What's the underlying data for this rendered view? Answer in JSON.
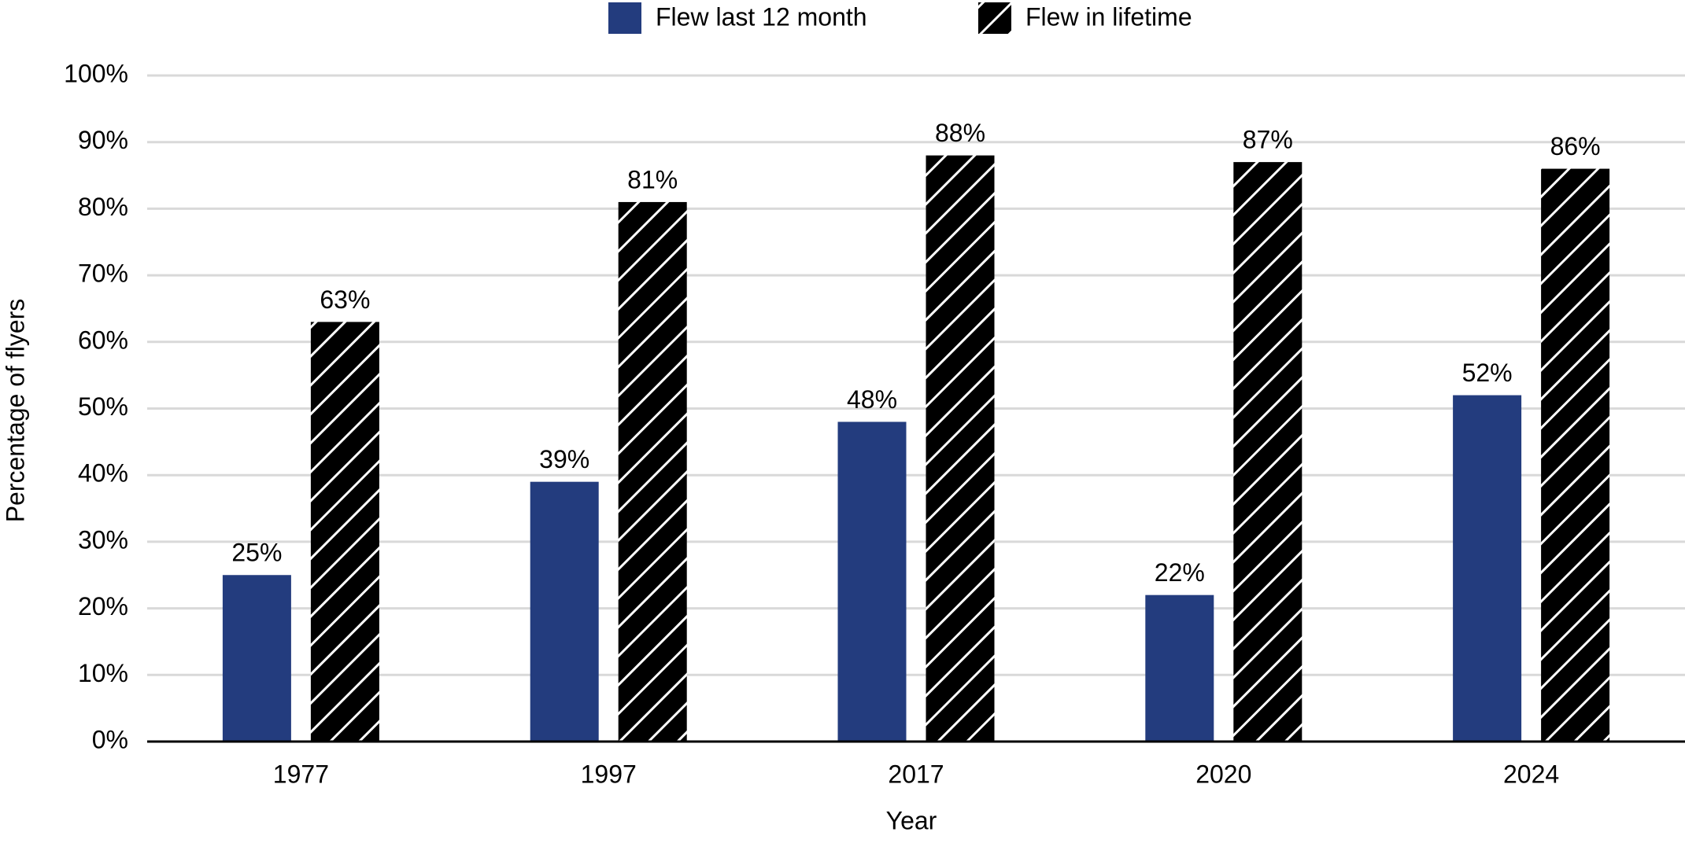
{
  "chart_data": {
    "type": "bar",
    "x_label": "Year",
    "y_label": "Percentage of flyers",
    "categories": [
      "1977",
      "1997",
      "2017",
      "2020",
      "2024"
    ],
    "series": [
      {
        "name": "Flew last 12 month",
        "color": "#233c7e",
        "hatch": false,
        "values": [
          25,
          39,
          48,
          22,
          52
        ],
        "value_labels": [
          "25%",
          "39%",
          "48%",
          "22%",
          "52%"
        ]
      },
      {
        "name": "Flew in lifetime",
        "color": "#b3aaa3",
        "hatch": true,
        "values": [
          63,
          81,
          88,
          87,
          86
        ],
        "value_labels": [
          "63%",
          "81%",
          "88%",
          "87%",
          "86%"
        ]
      }
    ],
    "ylim": [
      0,
      100
    ],
    "yticks": [
      {
        "value": 0,
        "label": "0%"
      },
      {
        "value": 10,
        "label": "10%"
      },
      {
        "value": 20,
        "label": "20%"
      },
      {
        "value": 30,
        "label": "30%"
      },
      {
        "value": 40,
        "label": "40%"
      },
      {
        "value": 50,
        "label": "50%"
      },
      {
        "value": 60,
        "label": "60%"
      },
      {
        "value": 70,
        "label": "70%"
      },
      {
        "value": 80,
        "label": "80%"
      },
      {
        "value": 90,
        "label": "90%"
      },
      {
        "value": 100,
        "label": "100%"
      }
    ],
    "grid": true,
    "legend": "top"
  }
}
